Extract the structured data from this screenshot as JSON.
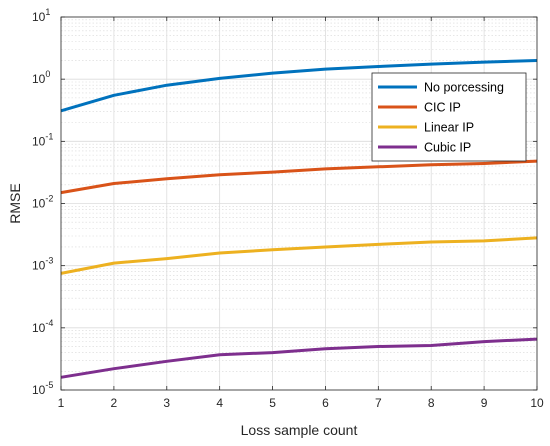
{
  "chart_data": {
    "type": "line",
    "xlabel": "Loss sample count",
    "ylabel": "RMSE",
    "yscale": "log",
    "xlim": [
      1,
      10
    ],
    "ylim": [
      1e-05,
      10
    ],
    "grid": true,
    "minor_grid": true,
    "legend_position": "top-right",
    "x": [
      1,
      2,
      3,
      4,
      5,
      6,
      7,
      8,
      9,
      10
    ],
    "x_tick_labels": [
      "1",
      "2",
      "3",
      "4",
      "5",
      "6",
      "7",
      "8",
      "9",
      "10"
    ],
    "y_ticks": [
      {
        "base": "10",
        "exp": "-5",
        "value": 1e-05
      },
      {
        "base": "10",
        "exp": "-4",
        "value": 0.0001
      },
      {
        "base": "10",
        "exp": "-3",
        "value": 0.001
      },
      {
        "base": "10",
        "exp": "-2",
        "value": 0.01
      },
      {
        "base": "10",
        "exp": "-1",
        "value": 0.1
      },
      {
        "base": "10",
        "exp": "0",
        "value": 1
      },
      {
        "base": "10",
        "exp": "1",
        "value": 10
      }
    ],
    "series": [
      {
        "name": "No porcessing",
        "color": "#0072BD",
        "values": [
          0.31,
          0.55,
          0.8,
          1.03,
          1.25,
          1.45,
          1.6,
          1.75,
          1.88,
          2.0
        ]
      },
      {
        "name": "CIC IP",
        "color": "#D95319",
        "values": [
          0.015,
          0.021,
          0.025,
          0.029,
          0.032,
          0.036,
          0.039,
          0.042,
          0.044,
          0.048
        ]
      },
      {
        "name": "Linear IP",
        "color": "#EDB120",
        "values": [
          0.00075,
          0.0011,
          0.0013,
          0.0016,
          0.0018,
          0.002,
          0.0022,
          0.0024,
          0.0025,
          0.0028
        ]
      },
      {
        "name": "Cubic IP",
        "color": "#7E2F8E",
        "values": [
          1.6e-05,
          2.2e-05,
          2.9e-05,
          3.7e-05,
          4e-05,
          4.6e-05,
          5e-05,
          5.2e-05,
          6e-05,
          6.6e-05
        ]
      }
    ]
  }
}
